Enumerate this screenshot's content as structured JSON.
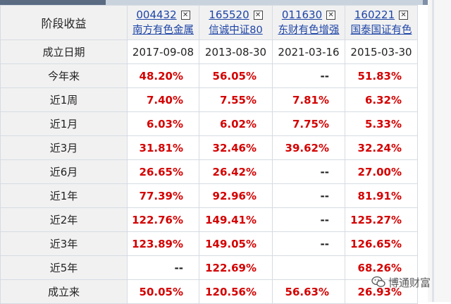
{
  "header": {
    "corner_label": "阶段收益",
    "close_glyph": "✕"
  },
  "funds": [
    {
      "code": "004432",
      "name": "南方有色金属"
    },
    {
      "code": "165520",
      "name": "信诚中证80"
    },
    {
      "code": "011630",
      "name": "东财有色增强"
    },
    {
      "code": "160221",
      "name": "国泰国证有色"
    }
  ],
  "rows": [
    {
      "label": "成立日期",
      "values": [
        "2017-09-08",
        "2013-08-30",
        "2021-03-16",
        "2015-03-30"
      ]
    },
    {
      "label": "今年来",
      "values": [
        "48.20%",
        "56.05%",
        "--",
        "51.83%"
      ]
    },
    {
      "label": "近1周",
      "values": [
        "7.40%",
        "7.55%",
        "7.81%",
        "6.32%"
      ]
    },
    {
      "label": "近1月",
      "values": [
        "6.03%",
        "6.02%",
        "7.75%",
        "5.33%"
      ]
    },
    {
      "label": "近3月",
      "values": [
        "31.81%",
        "32.46%",
        "39.62%",
        "32.24%"
      ]
    },
    {
      "label": "近6月",
      "values": [
        "26.65%",
        "26.42%",
        "--",
        "27.00%"
      ]
    },
    {
      "label": "近1年",
      "values": [
        "77.39%",
        "92.96%",
        "--",
        "81.91%"
      ]
    },
    {
      "label": "近2年",
      "values": [
        "122.76%",
        "149.41%",
        "--",
        "125.27%"
      ]
    },
    {
      "label": "近3年",
      "values": [
        "123.89%",
        "149.05%",
        "--",
        "126.65%"
      ]
    },
    {
      "label": "近5年",
      "values": [
        "--",
        "122.69%",
        "",
        "68.26%"
      ]
    },
    {
      "label": "成立来",
      "values": [
        "50.05%",
        "120.56%",
        "56.63%",
        "26.93%"
      ]
    }
  ],
  "watermark": {
    "text": "博通财富",
    "icon": "wechat-icon"
  },
  "colors": {
    "positive": "#d40000",
    "link": "#1d44a6",
    "header_bg": "#f1f1f1",
    "grid": "#d6dbe3"
  }
}
